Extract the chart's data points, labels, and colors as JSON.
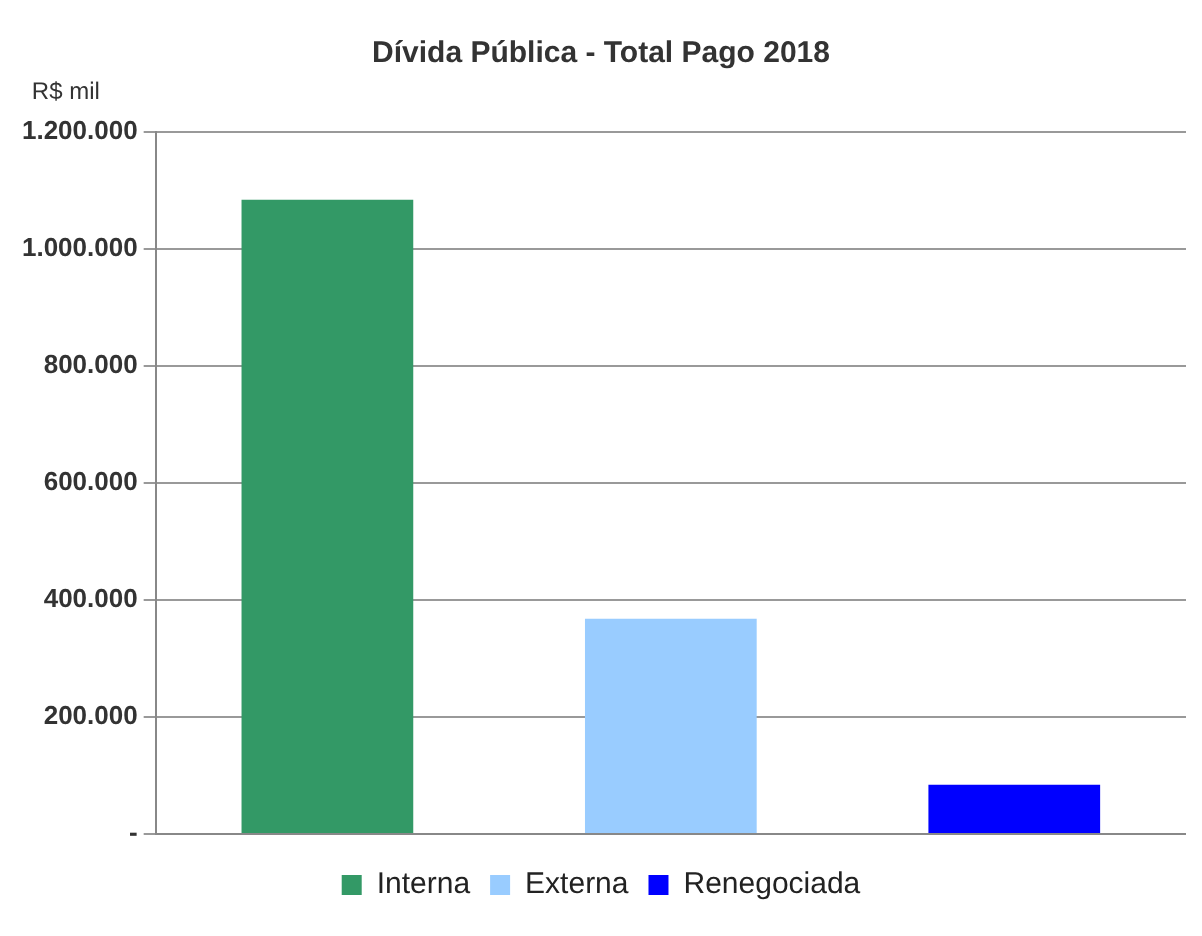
{
  "chart_data": {
    "type": "bar",
    "title": "Dívida Pública - Total Pago 2018",
    "ylabel": "R$ mil",
    "categories": [
      null,
      null,
      null
    ],
    "series": [
      {
        "name": "Interna",
        "color": "#339966",
        "values": [
          1084000,
          null,
          null
        ]
      },
      {
        "name": "Externa",
        "color": "#99ccff",
        "values": [
          null,
          368000,
          null
        ]
      },
      {
        "name": "Renegociada",
        "color": "#0000ff",
        "values": [
          null,
          null,
          84000
        ]
      }
    ],
    "ylim": [
      0,
      1200000
    ],
    "yticks": [
      {
        "value": 0,
        "label": "-"
      },
      {
        "value": 200000,
        "label": "200.000"
      },
      {
        "value": 400000,
        "label": "400.000"
      },
      {
        "value": 600000,
        "label": "600.000"
      },
      {
        "value": 800000,
        "label": "800.000"
      },
      {
        "value": 1000000,
        "label": "1.000.000"
      },
      {
        "value": 1200000,
        "label": "1.200.000"
      }
    ],
    "grid": "y",
    "legend": "bottom"
  }
}
